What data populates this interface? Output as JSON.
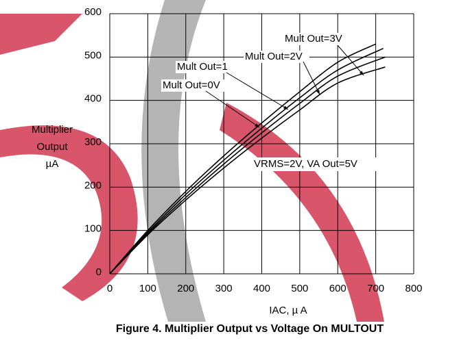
{
  "chart_data": {
    "type": "line",
    "xlabel": "IAC, µ A",
    "ylabel": [
      "Multiplier",
      "Output",
      "µA"
    ],
    "caption": "Figure 4. Multiplier Output vs Voltage On MULTOUT",
    "xlim": [
      0,
      800
    ],
    "xticks": [
      0,
      100,
      200,
      300,
      400,
      500,
      600,
      700,
      800
    ],
    "ylim": [
      0,
      600
    ],
    "yticks": [
      0,
      100,
      200,
      300,
      400,
      500,
      600
    ],
    "grid": true,
    "series": [
      {
        "name": "Mult Out=0V",
        "color": "#000000",
        "x": [
          0,
          100,
          200,
          300,
          400,
          500,
          600,
          700
        ],
        "values": [
          0,
          100,
          190,
          272,
          348,
          420,
          488,
          530
        ]
      },
      {
        "name": "Mult Out=1",
        "color": "#000000",
        "x": [
          0,
          100,
          200,
          300,
          400,
          500,
          600,
          720
        ],
        "values": [
          0,
          96,
          183,
          262,
          336,
          406,
          470,
          520
        ]
      },
      {
        "name": "Mult Out=2V",
        "color": "#000000",
        "x": [
          0,
          100,
          200,
          300,
          400,
          500,
          600,
          725
        ],
        "values": [
          0,
          93,
          176,
          253,
          325,
          393,
          456,
          500
        ]
      },
      {
        "name": "Mult Out=3V",
        "color": "#000000",
        "x": [
          0,
          100,
          200,
          300,
          400,
          500,
          600,
          725
        ],
        "values": [
          0,
          90,
          170,
          244,
          313,
          378,
          440,
          477
        ]
      }
    ],
    "annotations": [
      "VRMS=2V, VA Out=5V"
    ]
  }
}
